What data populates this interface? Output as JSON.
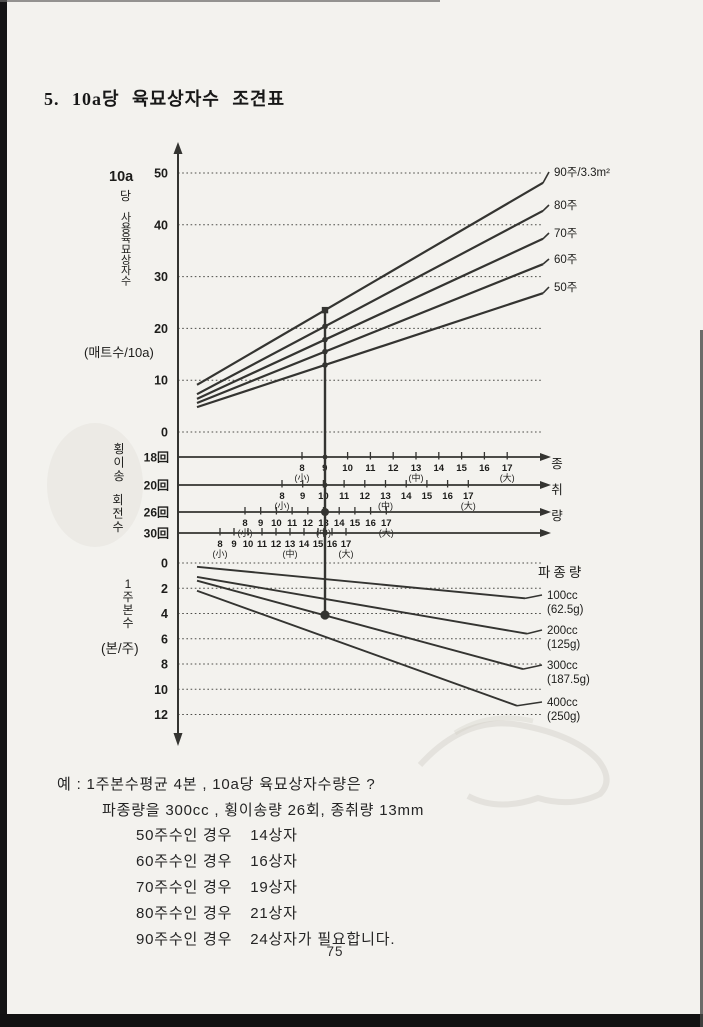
{
  "page": {
    "title": "5. 10a당 육묘상자수 조견표",
    "page_number": "75"
  },
  "chart_data": {
    "type": "nomogram",
    "title": "10a당 육묘상자수 조견표",
    "top_chart": {
      "axis_corner_label": "10a",
      "axis_corner_label2": "당",
      "y_axis_label": "사용육묘상자수",
      "y_axis_unit": "(매트수/10a)",
      "y_ticks": [
        50,
        40,
        30,
        20,
        10,
        0
      ],
      "ylim": [
        0,
        52
      ],
      "grid": "dotted",
      "series": [
        {
          "name": "90주/3.3m²",
          "start_value": 9.1,
          "end_value": 48.1,
          "boxes_at_reference": 24
        },
        {
          "name": "80주",
          "start_value": 7.3,
          "end_value": 42.7,
          "boxes_at_reference": 21
        },
        {
          "name": "70주",
          "start_value": 6.4,
          "end_value": 37.3,
          "boxes_at_reference": 19
        },
        {
          "name": "60주",
          "start_value": 5.6,
          "end_value": 32.4,
          "boxes_at_reference": 16
        },
        {
          "name": "50주",
          "start_value": 4.8,
          "end_value": 26.8,
          "boxes_at_reference": 14
        }
      ]
    },
    "middle_scales": {
      "left_axis_label": [
        "횡이송",
        "회전수"
      ],
      "right_axis_label": "종취량",
      "tick_values": [
        8,
        9,
        10,
        11,
        12,
        13,
        14,
        15,
        16,
        17
      ],
      "size_marks": {
        "8": "(小)",
        "13": "(中)",
        "17": "(大)"
      },
      "rows": [
        {
          "label": "18回"
        },
        {
          "label": "20回"
        },
        {
          "label": "26回"
        },
        {
          "label": "30回"
        }
      ],
      "reference": {
        "row": "26回",
        "value_mm": 13
      }
    },
    "bottom_chart": {
      "y_axis_label": "1주본수",
      "y_axis_unit": "(본/주)",
      "right_heading": "파종량",
      "y_ticks": [
        0,
        2,
        4,
        6,
        8,
        10,
        12
      ],
      "series": [
        {
          "name": "100cc",
          "weight": "(62.5g)",
          "start_value": 0.3,
          "end_value": 2.8
        },
        {
          "name": "200cc",
          "weight": "(125g)",
          "start_value": 1.1,
          "end_value": 5.6
        },
        {
          "name": "300cc",
          "weight": "(187.5g)",
          "start_value": 1.4,
          "end_value": 8.4
        },
        {
          "name": "400cc",
          "weight": "(250g)",
          "start_value": 2.2,
          "end_value": 11.3
        }
      ],
      "reference": {
        "series": "300cc",
        "value": 4
      }
    }
  },
  "example": {
    "line1": "예 : 1주본수평균 4본 , 10a당 육묘상자수량은 ?",
    "line2": "파종량을 300cc , 횡이송량 26회, 종취량 13mm",
    "cases": [
      {
        "condition": "50주수인 경우",
        "result": "14상자"
      },
      {
        "condition": "60주수인 경우",
        "result": "16상자"
      },
      {
        "condition": "70주수인 경우",
        "result": "19상자"
      },
      {
        "condition": "80주수인 경우",
        "result": "21상자"
      },
      {
        "condition": "90주수인 경우",
        "result": "24상자가 필요합니다."
      }
    ]
  }
}
